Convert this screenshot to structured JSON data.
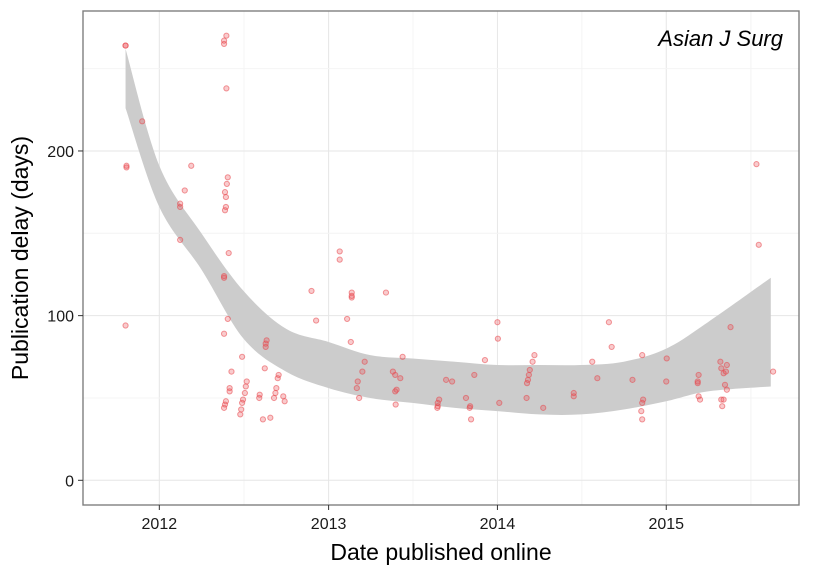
{
  "chart_data": {
    "type": "scatter",
    "title": "",
    "xlabel": "Date published online",
    "ylabel": "Publication delay (days)",
    "annotation": "Asian J Surg",
    "x_axis_type": "date",
    "xlim": [
      "2011-07-20",
      "2015-10-15"
    ],
    "ylim": [
      -15,
      285
    ],
    "x_ticks": [
      {
        "value": "2012-01-01",
        "label": "2012"
      },
      {
        "value": "2013-01-01",
        "label": "2013"
      },
      {
        "value": "2014-01-01",
        "label": "2014"
      },
      {
        "value": "2015-01-01",
        "label": "2015"
      }
    ],
    "y_ticks": [
      {
        "value": 0,
        "label": "0"
      },
      {
        "value": 100,
        "label": "100"
      },
      {
        "value": 200,
        "label": "200"
      }
    ],
    "grid": true,
    "point_color": "#e8464a",
    "band_color": "#cccccc",
    "smooth_fill": "#bdbdbd",
    "series": [
      {
        "values": [
          {
            "x": "2011-10-20",
            "y": 264
          },
          {
            "x": "2011-10-20",
            "y": 264
          },
          {
            "x": "2011-10-22",
            "y": 191
          },
          {
            "x": "2011-10-22",
            "y": 190
          },
          {
            "x": "2011-10-20",
            "y": 94
          },
          {
            "x": "2011-11-25",
            "y": 218
          },
          {
            "x": "2012-02-25",
            "y": 176
          },
          {
            "x": "2012-03-10",
            "y": 191
          },
          {
            "x": "2012-02-15",
            "y": 168
          },
          {
            "x": "2012-02-15",
            "y": 166
          },
          {
            "x": "2012-02-15",
            "y": 146
          },
          {
            "x": "2012-05-20",
            "y": 267
          },
          {
            "x": "2012-05-20",
            "y": 265
          },
          {
            "x": "2012-05-25",
            "y": 270
          },
          {
            "x": "2012-05-25",
            "y": 238
          },
          {
            "x": "2012-05-28",
            "y": 184
          },
          {
            "x": "2012-05-26",
            "y": 180
          },
          {
            "x": "2012-05-22",
            "y": 175
          },
          {
            "x": "2012-05-24",
            "y": 172
          },
          {
            "x": "2012-05-24",
            "y": 166
          },
          {
            "x": "2012-05-22",
            "y": 164
          },
          {
            "x": "2012-05-30",
            "y": 138
          },
          {
            "x": "2012-05-20",
            "y": 124
          },
          {
            "x": "2012-05-20",
            "y": 123
          },
          {
            "x": "2012-05-28",
            "y": 98
          },
          {
            "x": "2012-05-20",
            "y": 89
          },
          {
            "x": "2012-06-05",
            "y": 66
          },
          {
            "x": "2012-06-01",
            "y": 56
          },
          {
            "x": "2012-06-01",
            "y": 54
          },
          {
            "x": "2012-05-24",
            "y": 48
          },
          {
            "x": "2012-05-22",
            "y": 46
          },
          {
            "x": "2012-05-20",
            "y": 44
          },
          {
            "x": "2012-06-28",
            "y": 75
          },
          {
            "x": "2012-07-08",
            "y": 60
          },
          {
            "x": "2012-07-06",
            "y": 57
          },
          {
            "x": "2012-07-04",
            "y": 53
          },
          {
            "x": "2012-06-30",
            "y": 49
          },
          {
            "x": "2012-06-28",
            "y": 47
          },
          {
            "x": "2012-06-26",
            "y": 43
          },
          {
            "x": "2012-06-24",
            "y": 40
          },
          {
            "x": "2012-08-20",
            "y": 85
          },
          {
            "x": "2012-08-18",
            "y": 83
          },
          {
            "x": "2012-08-18",
            "y": 81
          },
          {
            "x": "2012-08-16",
            "y": 68
          },
          {
            "x": "2012-08-05",
            "y": 52
          },
          {
            "x": "2012-08-04",
            "y": 50
          },
          {
            "x": "2012-08-12",
            "y": 37
          },
          {
            "x": "2012-08-28",
            "y": 38
          },
          {
            "x": "2012-09-15",
            "y": 64
          },
          {
            "x": "2012-09-13",
            "y": 62
          },
          {
            "x": "2012-09-10",
            "y": 56
          },
          {
            "x": "2012-09-08",
            "y": 53
          },
          {
            "x": "2012-09-05",
            "y": 50
          },
          {
            "x": "2012-09-25",
            "y": 51
          },
          {
            "x": "2012-09-28",
            "y": 48
          },
          {
            "x": "2012-11-25",
            "y": 115
          },
          {
            "x": "2012-12-05",
            "y": 97
          },
          {
            "x": "2013-01-25",
            "y": 139
          },
          {
            "x": "2013-01-25",
            "y": 134
          },
          {
            "x": "2013-02-10",
            "y": 98
          },
          {
            "x": "2013-02-20",
            "y": 114
          },
          {
            "x": "2013-02-20",
            "y": 112
          },
          {
            "x": "2013-02-20",
            "y": 111
          },
          {
            "x": "2013-02-18",
            "y": 84
          },
          {
            "x": "2013-03-05",
            "y": 60
          },
          {
            "x": "2013-03-03",
            "y": 56
          },
          {
            "x": "2013-03-08",
            "y": 50
          },
          {
            "x": "2013-03-15",
            "y": 66
          },
          {
            "x": "2013-03-20",
            "y": 72
          },
          {
            "x": "2013-05-05",
            "y": 114
          },
          {
            "x": "2013-05-20",
            "y": 66
          },
          {
            "x": "2013-05-25",
            "y": 64
          },
          {
            "x": "2013-05-28",
            "y": 55
          },
          {
            "x": "2013-05-25",
            "y": 54
          },
          {
            "x": "2013-05-26",
            "y": 46
          },
          {
            "x": "2013-06-05",
            "y": 62
          },
          {
            "x": "2013-06-10",
            "y": 75
          },
          {
            "x": "2013-08-25",
            "y": 47
          },
          {
            "x": "2013-08-25",
            "y": 45
          },
          {
            "x": "2013-08-24",
            "y": 44
          },
          {
            "x": "2013-08-28",
            "y": 49
          },
          {
            "x": "2013-09-12",
            "y": 61
          },
          {
            "x": "2013-09-25",
            "y": 60
          },
          {
            "x": "2013-10-25",
            "y": 50
          },
          {
            "x": "2013-11-03",
            "y": 45
          },
          {
            "x": "2013-11-02",
            "y": 44
          },
          {
            "x": "2013-11-05",
            "y": 37
          },
          {
            "x": "2013-11-12",
            "y": 64
          },
          {
            "x": "2013-12-05",
            "y": 73
          },
          {
            "x": "2014-01-01",
            "y": 96
          },
          {
            "x": "2014-01-02",
            "y": 86
          },
          {
            "x": "2014-01-05",
            "y": 47
          },
          {
            "x": "2014-03-08",
            "y": 61
          },
          {
            "x": "2014-03-06",
            "y": 59
          },
          {
            "x": "2014-03-10",
            "y": 64
          },
          {
            "x": "2014-03-12",
            "y": 67
          },
          {
            "x": "2014-03-18",
            "y": 72
          },
          {
            "x": "2014-03-22",
            "y": 76
          },
          {
            "x": "2014-03-05",
            "y": 50
          },
          {
            "x": "2014-04-10",
            "y": 44
          },
          {
            "x": "2014-06-15",
            "y": 53
          },
          {
            "x": "2014-06-15",
            "y": 51
          },
          {
            "x": "2014-07-25",
            "y": 72
          },
          {
            "x": "2014-08-05",
            "y": 62
          },
          {
            "x": "2014-08-30",
            "y": 96
          },
          {
            "x": "2014-09-05",
            "y": 81
          },
          {
            "x": "2014-10-20",
            "y": 61
          },
          {
            "x": "2014-11-10",
            "y": 76
          },
          {
            "x": "2014-11-12",
            "y": 49
          },
          {
            "x": "2014-11-10",
            "y": 47
          },
          {
            "x": "2014-11-08",
            "y": 42
          },
          {
            "x": "2014-11-10",
            "y": 37
          },
          {
            "x": "2015-01-02",
            "y": 74
          },
          {
            "x": "2015-01-01",
            "y": 60
          },
          {
            "x": "2015-03-12",
            "y": 64
          },
          {
            "x": "2015-03-10",
            "y": 60
          },
          {
            "x": "2015-03-10",
            "y": 59
          },
          {
            "x": "2015-03-12",
            "y": 51
          },
          {
            "x": "2015-03-15",
            "y": 49
          },
          {
            "x": "2015-04-28",
            "y": 72
          },
          {
            "x": "2015-04-30",
            "y": 68
          },
          {
            "x": "2015-05-05",
            "y": 65
          },
          {
            "x": "2015-05-10",
            "y": 66
          },
          {
            "x": "2015-05-12",
            "y": 70
          },
          {
            "x": "2015-05-08",
            "y": 58
          },
          {
            "x": "2015-05-12",
            "y": 55
          },
          {
            "x": "2015-05-05",
            "y": 49
          },
          {
            "x": "2015-04-30",
            "y": 49
          },
          {
            "x": "2015-05-02",
            "y": 45
          },
          {
            "x": "2015-05-20",
            "y": 93
          },
          {
            "x": "2015-07-15",
            "y": 192
          },
          {
            "x": "2015-07-20",
            "y": 143
          },
          {
            "x": "2015-08-20",
            "y": 66
          }
        ]
      }
    ],
    "smooth_band": [
      {
        "x": "2011-10-20",
        "lo": 226,
        "hi": 262
      },
      {
        "x": "2012-01-01",
        "lo": 166,
        "hi": 191
      },
      {
        "x": "2012-04-01",
        "lo": 128,
        "hi": 150
      },
      {
        "x": "2012-07-01",
        "lo": 86,
        "hi": 115
      },
      {
        "x": "2012-10-01",
        "lo": 66,
        "hi": 92
      },
      {
        "x": "2013-01-01",
        "lo": 56,
        "hi": 84
      },
      {
        "x": "2013-04-01",
        "lo": 50,
        "hi": 76
      },
      {
        "x": "2013-07-01",
        "lo": 47,
        "hi": 74
      },
      {
        "x": "2013-10-01",
        "lo": 44,
        "hi": 72
      },
      {
        "x": "2014-01-01",
        "lo": 42,
        "hi": 70
      },
      {
        "x": "2014-04-01",
        "lo": 40,
        "hi": 70
      },
      {
        "x": "2014-07-01",
        "lo": 40,
        "hi": 70
      },
      {
        "x": "2014-10-01",
        "lo": 43,
        "hi": 72
      },
      {
        "x": "2015-01-01",
        "lo": 48,
        "hi": 80
      },
      {
        "x": "2015-04-01",
        "lo": 54,
        "hi": 96
      },
      {
        "x": "2015-08-15",
        "lo": 57,
        "hi": 123
      }
    ]
  }
}
